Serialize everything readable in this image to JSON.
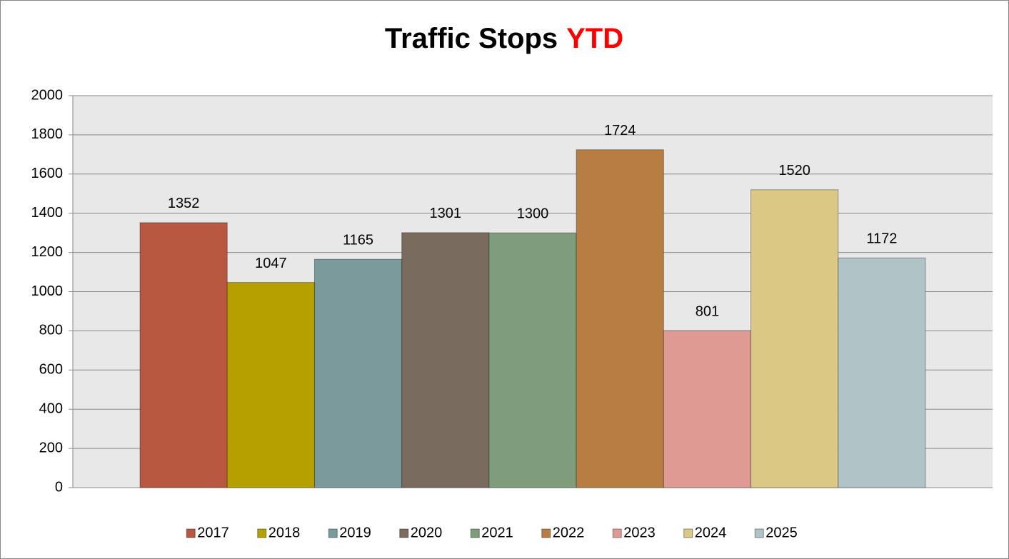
{
  "chart_data": {
    "type": "bar",
    "title": "Traffic Stops",
    "title_highlight": {
      "text": "YTD",
      "color": "#ff0000"
    },
    "categories": [
      null
    ],
    "series": [
      {
        "name": "2017",
        "color": "#b85840",
        "values": [
          1352
        ]
      },
      {
        "name": "2018",
        "color": "#b5a000",
        "values": [
          1047
        ]
      },
      {
        "name": "2019",
        "color": "#7a9a9b",
        "values": [
          1165
        ]
      },
      {
        "name": "2020",
        "color": "#7a6b5f",
        "values": [
          1301
        ]
      },
      {
        "name": "2021",
        "color": "#7f9c7c",
        "values": [
          1300
        ]
      },
      {
        "name": "2022",
        "color": "#b87d42",
        "values": [
          1724
        ]
      },
      {
        "name": "2023",
        "color": "#df9b93",
        "values": [
          801
        ]
      },
      {
        "name": "2024",
        "color": "#dbc885",
        "values": [
          1520
        ]
      },
      {
        "name": "2025",
        "color": "#b0c3c7",
        "values": [
          1172
        ]
      }
    ],
    "ylim": [
      0,
      2000
    ],
    "yticks": [
      0,
      200,
      400,
      600,
      800,
      1000,
      1200,
      1400,
      1600,
      1800,
      2000
    ],
    "grid": true,
    "legend": "bottom"
  }
}
